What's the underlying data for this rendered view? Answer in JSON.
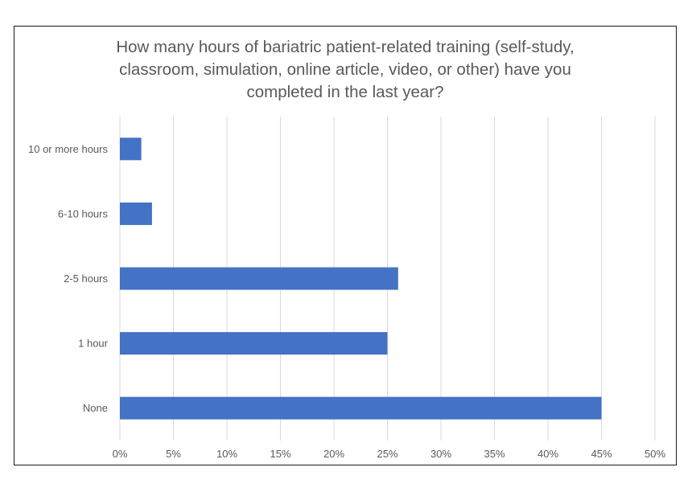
{
  "chart_data": {
    "type": "bar",
    "orientation": "horizontal",
    "title_lines": [
      "How many hours of bariatric patient-related training (self-study,",
      "classroom, simulation, online article, video, or other) have you",
      "completed in the last year?"
    ],
    "categories": [
      "10 or more hours",
      "6-10 hours",
      "2-5 hours",
      "1 hour",
      "None"
    ],
    "values": [
      2,
      3,
      26,
      25,
      45
    ],
    "value_unit": "%",
    "xlim": [
      0,
      50
    ],
    "x_ticks": [
      "0%",
      "5%",
      "10%",
      "15%",
      "20%",
      "25%",
      "30%",
      "35%",
      "40%",
      "45%",
      "50%"
    ],
    "xlabel": "",
    "ylabel": "",
    "grid": "vertical",
    "legend": "none",
    "bar_color": "#4472C4",
    "grid_color": "#D9D9D9",
    "text_color": "#595959"
  }
}
